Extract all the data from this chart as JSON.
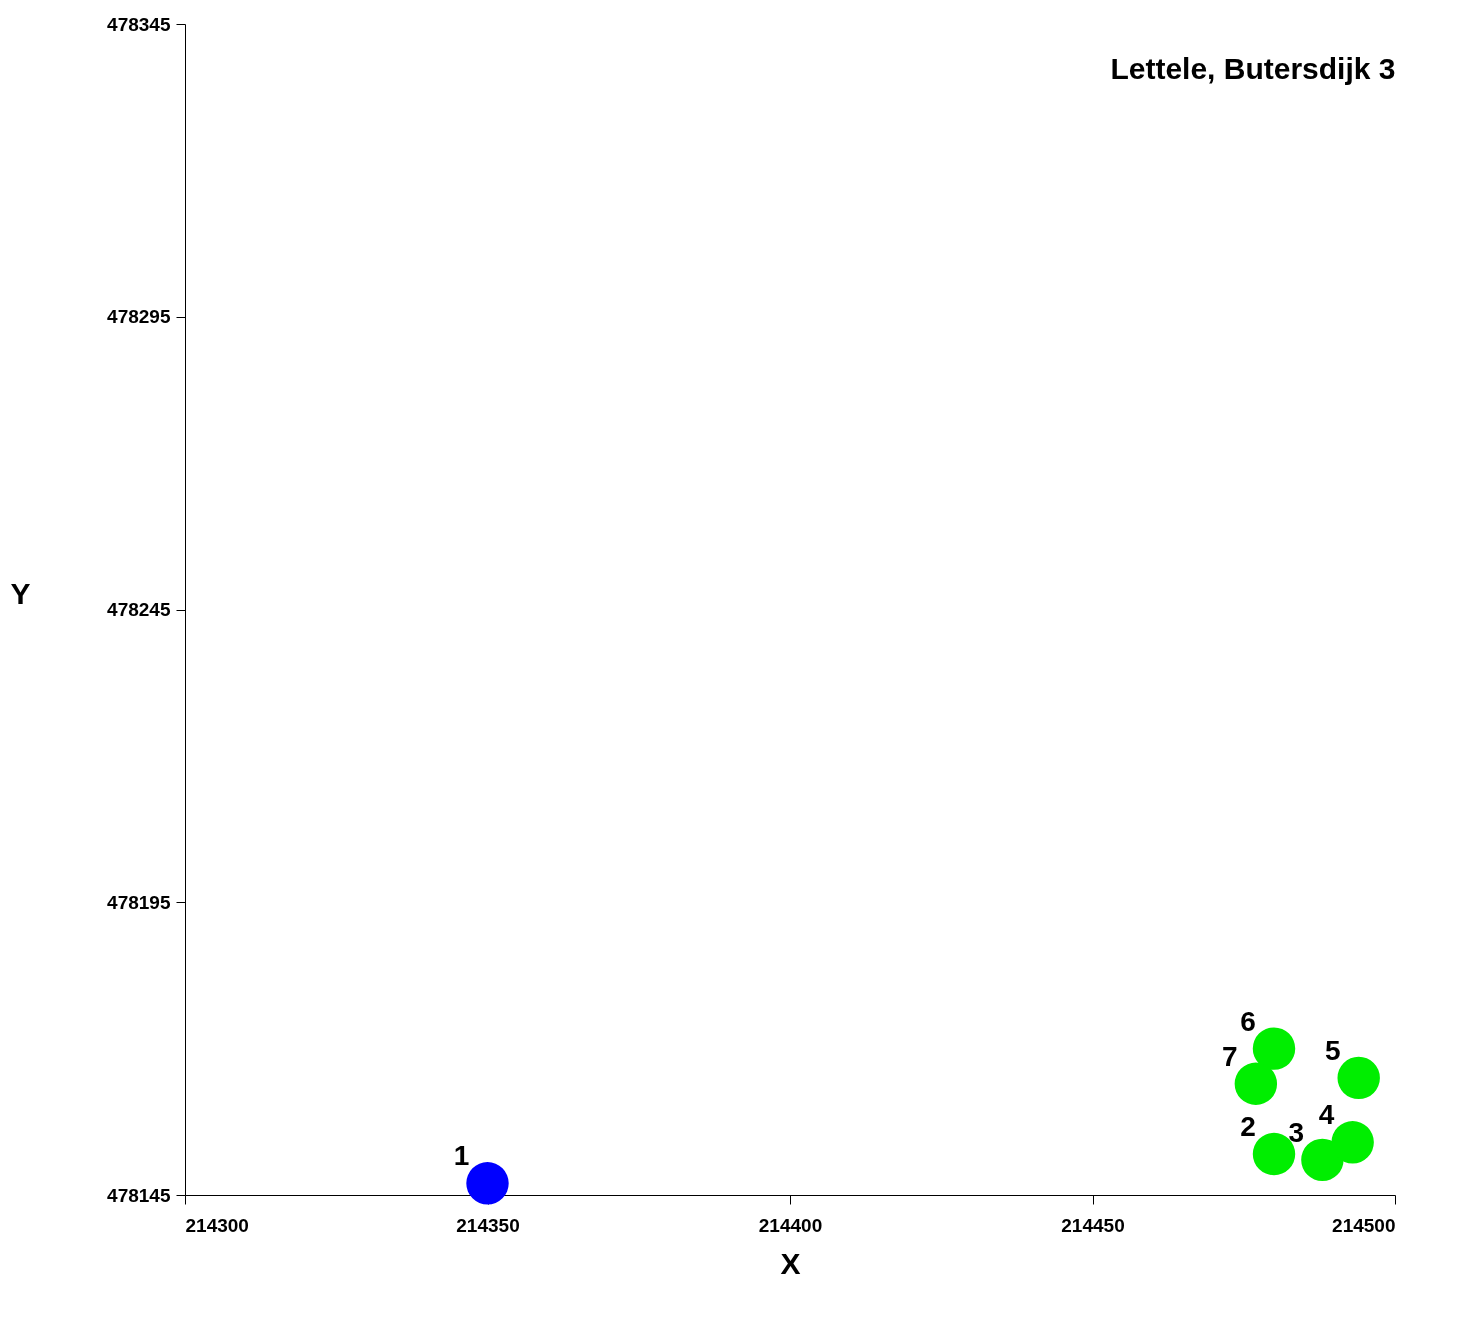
{
  "chart_data": {
    "type": "scatter",
    "title": "Lettele, Butersdijk 3",
    "xlabel": "X",
    "ylabel": "Y",
    "x": [
      214350,
      214480,
      214488,
      214493,
      214494,
      214480,
      214477
    ],
    "values": [
      478147,
      478152,
      478151,
      478154,
      478165,
      478170,
      478164
    ],
    "colors": [
      "#0000ff",
      "#00ee00",
      "#00ee00",
      "#00ee00",
      "#00ee00",
      "#00ee00",
      "#00ee00"
    ],
    "marker": "circle",
    "xlim": [
      214300,
      214500
    ],
    "xticks": [
      214300,
      214350,
      214400,
      214450,
      214500
    ],
    "ylim": [
      478145,
      478345
    ],
    "yticks": [
      478145,
      478195,
      478245,
      478295,
      478345
    ],
    "grid": false,
    "legend": false,
    "annotations": [
      {
        "text": "1",
        "x": 214350,
        "y": 478147
      },
      {
        "text": "2",
        "x": 214480,
        "y": 478152
      },
      {
        "text": "3",
        "x": 214488,
        "y": 478151
      },
      {
        "text": "4",
        "x": 214493,
        "y": 478154
      },
      {
        "text": "5",
        "x": 214494,
        "y": 478165
      },
      {
        "text": "6",
        "x": 214480,
        "y": 478170
      },
      {
        "text": "7",
        "x": 214477,
        "y": 478164
      }
    ]
  }
}
